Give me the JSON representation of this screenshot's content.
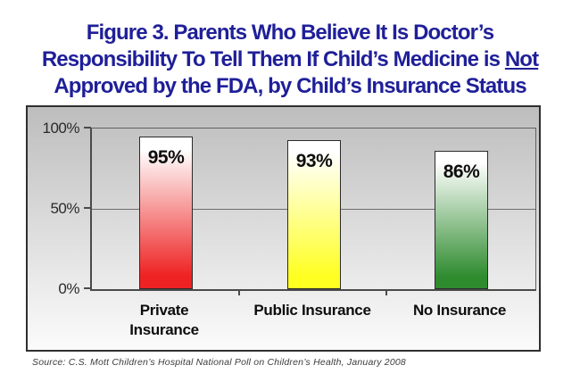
{
  "title": {
    "line1": "Figure 3. Parents Who Believe It Is Doctor’s",
    "line2_pre": "Responsibility To Tell Them If Child’s Medicine is ",
    "line2_underline": "Not",
    "line3": "Approved by the FDA, by Child’s Insurance Status",
    "color": "#1F1F99"
  },
  "chart_data": {
    "type": "bar",
    "title": "Parents Who Believe It Is Doctor’s Responsibility To Tell Them If Child’s Medicine is Not Approved by the FDA, by Child’s Insurance Status",
    "categories": [
      "Private\nInsurance",
      "Public Insurance",
      "No Insurance"
    ],
    "values": [
      95,
      93,
      86
    ],
    "value_labels": [
      "95%",
      "93%",
      "86%"
    ],
    "bar_colors": [
      "#EE2222",
      "#FFFF22",
      "#2E8B2E"
    ],
    "bar_gradient_top": "#FFFFFF",
    "xlabel": "",
    "ylabel": "",
    "ylim": [
      0,
      100
    ],
    "ytick_labels": [
      "0%",
      "50%",
      "100%"
    ],
    "ytick_values": [
      0,
      50,
      100
    ],
    "gridline_values": [
      50
    ],
    "legend": "none",
    "plot_background": "gray-gradient"
  },
  "source": "Source: C.S. Mott Children’s Hospital National Poll on Children’s Health, January 2008"
}
